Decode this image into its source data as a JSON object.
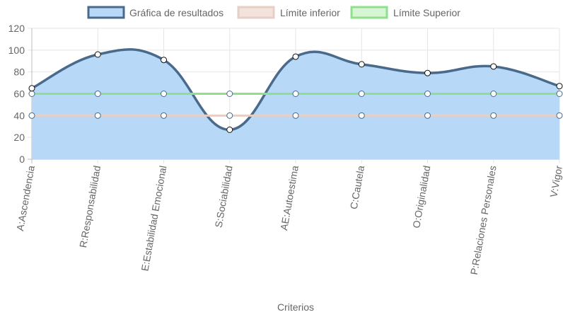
{
  "chart_data": {
    "type": "line",
    "title": "",
    "xlabel": "Criterios",
    "ylabel": "",
    "ylim": [
      0,
      120
    ],
    "yticks": [
      0,
      20,
      40,
      60,
      80,
      100,
      120
    ],
    "grid": true,
    "legend_position": "top",
    "categories": [
      "A:Ascendencia",
      "R:Responsabilidad",
      "E:Estabilidad Emocional",
      "S:Sociabilidad",
      "AE:Autoestima",
      "C:Cautela",
      "O:Originalidad",
      "P:Relaciones Personales",
      "V:Vigor"
    ],
    "series": [
      {
        "name": "Gráfica de resultados",
        "values": [
          65,
          96,
          91,
          27,
          94,
          87,
          79,
          85,
          67
        ],
        "stroke": "#4a6a8c",
        "fill": "#b7d8f6",
        "filled": true
      },
      {
        "name": "Límite inferior",
        "values": [
          40,
          40,
          40,
          40,
          40,
          40,
          40,
          40,
          40
        ],
        "stroke": "#e6cfc4",
        "fill": "#f3e3dc",
        "filled": false
      },
      {
        "name": "Límite Superior",
        "values": [
          60,
          60,
          60,
          60,
          60,
          60,
          60,
          60,
          60
        ],
        "stroke": "#8fe08a",
        "fill": "#d7f5d4",
        "filled": false
      }
    ]
  }
}
